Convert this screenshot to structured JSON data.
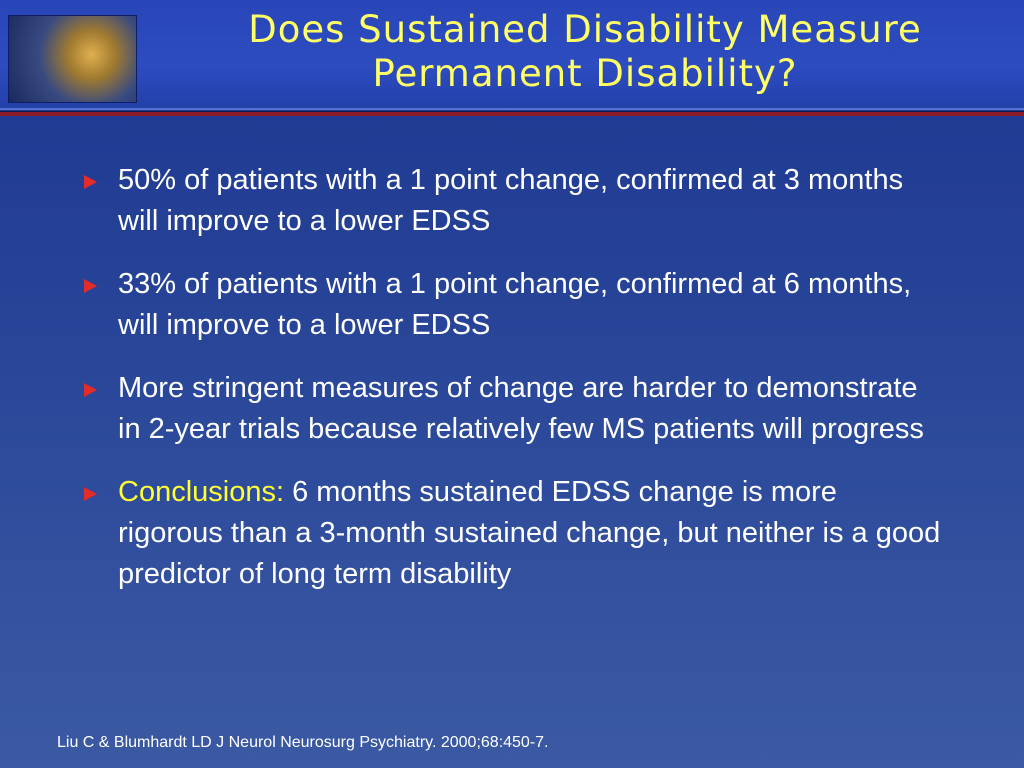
{
  "header": {
    "title": [
      "Does Sustained Disability Measure",
      "Permanent Disability?"
    ]
  },
  "bullets": [
    {
      "text": "50% of patients with a 1 point change, confirmed at 3 months will improve to a lower EDSS"
    },
    {
      "text": "33% of patients with a 1 point change, confirmed at 6 months, will improve to a lower EDSS"
    },
    {
      "text": "More stringent measures of change are harder to demonstrate in 2-year trials because relatively few MS patients will progress"
    },
    {
      "lead": "Conclusions:",
      "text": "6 months sustained EDSS change is more rigorous than a 3-month sustained change, but neither is a good predictor of long term disability"
    }
  ],
  "footer": {
    "citation": "Liu C & Blumhardt  LD  J Neurol Neurosurg Psychiatry. 2000;68:450-7."
  }
}
